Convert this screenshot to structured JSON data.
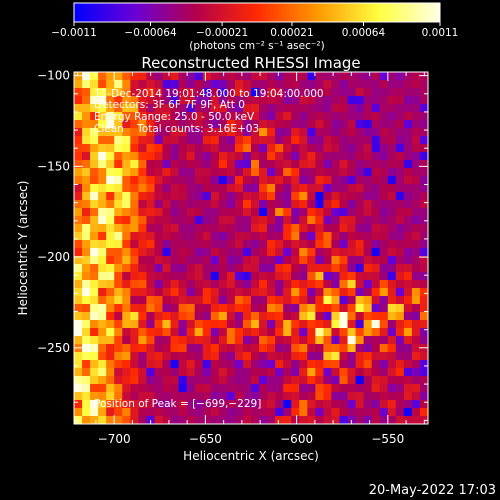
{
  "chart_data": {
    "type": "heatmap",
    "title": "Reconstructed RHESSI Image",
    "xlabel": "Heliocentric X (arcsec)",
    "ylabel": "Heliocentric Y (arcsec)",
    "xlim": [
      -722,
      -528
    ],
    "ylim": [
      -292,
      -98
    ],
    "x_ticks": [
      -700,
      -650,
      -600,
      -550
    ],
    "x_tick_labels": [
      "−700",
      "−650",
      "−600",
      "−550"
    ],
    "y_ticks": [
      -100,
      -150,
      -200,
      -250
    ],
    "y_tick_labels": [
      "−100",
      "−150",
      "−200",
      "−250"
    ],
    "colorbar": {
      "range": [
        -0.0011,
        0.0011
      ],
      "ticks": [
        -0.0011,
        -0.00064,
        -0.00021,
        0.00021,
        0.00064,
        0.0011
      ],
      "tick_labels": [
        "−0.0011",
        "−0.00064",
        "−0.00021",
        "0.00021",
        "0.00064",
        "0.0011"
      ],
      "unit_label": "(photons cm⁻² s⁻¹ asec⁻²)",
      "colors": [
        "#0000ff",
        "#6a00d6",
        "#b4004c",
        "#ff2a00",
        "#ff9a00",
        "#ffff40",
        "#ffffe6"
      ]
    },
    "annotations": [
      "11-Dec-2014 19:01:48.000 to 19:04:00.000",
      "Detectors: 3F 6F 7F 9F, Att 0",
      "Energy Range: 25.0 - 50.0 keV",
      "Clean    Total counts: 3.16E+03"
    ],
    "peak_label": "Position of Peak = [−699,−229]",
    "peak": [
      -699,
      -229
    ]
  },
  "footer": {
    "timestamp": "20-May-2022 17:03"
  }
}
